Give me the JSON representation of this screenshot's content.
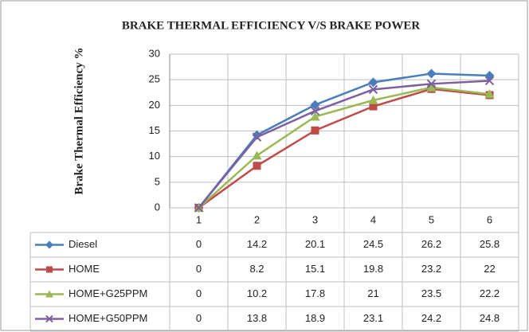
{
  "chart_data": {
    "type": "line",
    "title": "BRAKE THERMAL  EFFICIENCY V/S BRAKE POWER",
    "y_label": "Brake  Thermal  Efficiency %",
    "categories": [
      "1",
      "2",
      "3",
      "4",
      "5",
      "6"
    ],
    "series": [
      {
        "name": "Diesel",
        "color": "#4a7ebb",
        "marker": "diamond",
        "values": [
          0,
          14.2,
          20.1,
          24.5,
          26.2,
          25.8
        ]
      },
      {
        "name": "HOME",
        "color": "#be4b48",
        "marker": "square",
        "values": [
          0,
          8.2,
          15.1,
          19.8,
          23.2,
          22
        ]
      },
      {
        "name": "HOME+G25PPM",
        "color": "#98b954",
        "marker": "triangle",
        "values": [
          0,
          10.2,
          17.8,
          21,
          23.5,
          22.2
        ]
      },
      {
        "name": "HOME+G50PPM",
        "color": "#7d60a0",
        "marker": "x",
        "values": [
          0,
          13.8,
          18.9,
          23.1,
          24.2,
          24.8
        ]
      }
    ],
    "ylim": [
      0,
      30
    ],
    "yticks": [
      0,
      5,
      10,
      15,
      20,
      25,
      30
    ],
    "grid": true,
    "data_table": true
  }
}
